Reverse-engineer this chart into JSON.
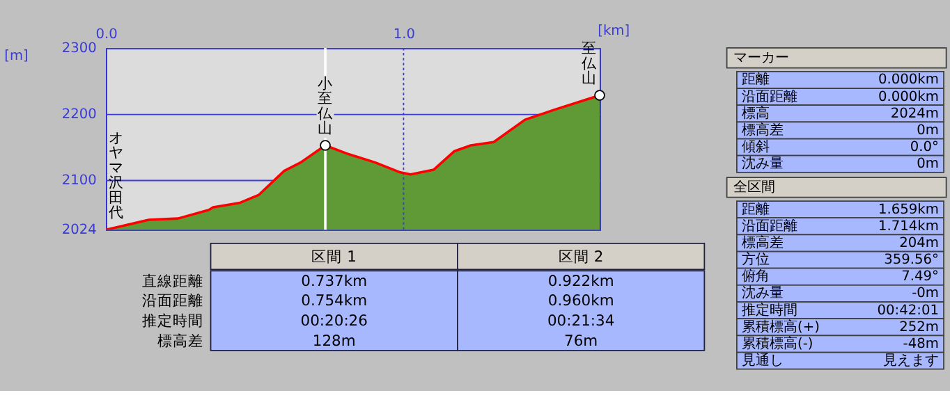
{
  "chart_data": [
    {
      "type": "area",
      "xlabel": "[km]",
      "ylabel": "[m]",
      "x": [
        0,
        0.144,
        0.242,
        0.346,
        0.36,
        0.451,
        0.514,
        0.598,
        0.654,
        0.737,
        0.807,
        0.905,
        0.989,
        1.024,
        1.101,
        1.17,
        1.226,
        1.303,
        1.408,
        1.506,
        1.659
      ],
      "series": [
        {
          "type": "area",
          "color": "#5f9a37",
          "values": [
            2024,
            2039,
            2041,
            2054,
            2058,
            2065,
            2077,
            2113,
            2126,
            2152,
            2140,
            2126,
            2111,
            2108,
            2115,
            2143,
            2152,
            2157,
            2191,
            2206,
            2228
          ]
        },
        {
          "type": "line",
          "color": "#ff0000",
          "values": [
            2024,
            2039,
            2041,
            2054,
            2058,
            2065,
            2077,
            2113,
            2126,
            2152,
            2140,
            2126,
            2111,
            2108,
            2115,
            2143,
            2152,
            2157,
            2191,
            2206,
            2228
          ]
        },
        {
          "type": "scatter",
          "color": "#ffffff",
          "marker": "circle",
          "x": [
            0.737,
            1.659
          ],
          "values": [
            2152,
            2228
          ]
        }
      ],
      "line_style": "solid",
      "xlim": [
        0,
        1.659
      ],
      "xticks": [
        {
          "value": 0,
          "label": "0.0"
        },
        {
          "value": 1,
          "label": "1.0"
        }
      ],
      "ylim": [
        2024,
        2300
      ],
      "yticks": [
        2024,
        2100,
        2200,
        2300
      ],
      "grid": "y",
      "ref_lines": [
        {
          "axis": "x",
          "value": 0.737,
          "color": "#ffffff"
        },
        {
          "axis": "x",
          "value": 1.0,
          "color": "#3b3bd6",
          "line_style": "dotted"
        }
      ],
      "annotations": [
        {
          "text": "オヤマ沢田代",
          "x": 0,
          "y": 2024
        },
        {
          "text": "小至仏山",
          "x": 0.737,
          "y": 2152
        },
        {
          "text": "至仏山",
          "x": 1.659,
          "y": 2228
        }
      ]
    },
    {
      "type": "other",
      "categories": [
        "区間 1",
        "区間 2"
      ],
      "y_categories": [
        "直線距離",
        "沿面距離",
        "推定時間",
        "標高差"
      ],
      "cell_labels": [
        [
          "0.737km",
          "0.922km"
        ],
        [
          "0.754km",
          "0.960km"
        ],
        [
          "00:20:26",
          "00:21:34"
        ],
        [
          "128m",
          "76m"
        ]
      ]
    },
    {
      "type": "other",
      "title": "マーカー",
      "y_categories": [
        "距離",
        "沿面距離",
        "標高",
        "標高差",
        "傾斜",
        "沈み量"
      ],
      "cell_labels": [
        [
          "0.000km"
        ],
        [
          "0.000km"
        ],
        [
          "2024m"
        ],
        [
          "0m"
        ],
        [
          "0.0°"
        ],
        [
          "0m"
        ]
      ]
    },
    {
      "type": "other",
      "title": "全区間",
      "y_categories": [
        "距離",
        "沿面距離",
        "標高差",
        "方位",
        "俯角",
        "沈み量",
        "推定時間",
        "累積標高(+)",
        "累積標高(-)",
        "見通し"
      ],
      "cell_labels": [
        [
          "1.659km"
        ],
        [
          "1.714km"
        ],
        [
          "204m"
        ],
        [
          "359.56°"
        ],
        [
          "7.49°"
        ],
        [
          "-0m"
        ],
        [
          "00:42:01"
        ],
        [
          "252m"
        ],
        [
          "-48m"
        ],
        [
          "見えます"
        ]
      ]
    }
  ]
}
